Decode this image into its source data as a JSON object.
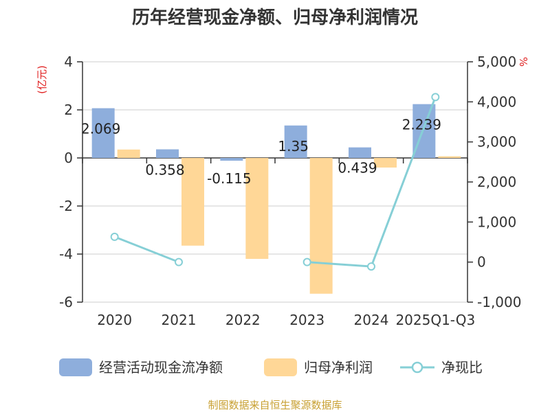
{
  "chart_data": {
    "type": "bar",
    "title": "历年经营现金净额、归母净利润情况",
    "categories": [
      "2020",
      "2021",
      "2022",
      "2023",
      "2024",
      "2025Q1-Q3"
    ],
    "series": [
      {
        "name": "经营活动现金流净额",
        "type": "bar",
        "axis": "left",
        "values": [
          2.069,
          0.358,
          -0.115,
          1.35,
          0.439,
          2.239
        ],
        "labels": [
          "2.069",
          "0.358",
          "-0.115",
          "1.35",
          "0.439",
          "2.239"
        ],
        "color": "#8eaedc"
      },
      {
        "name": "归母净利润",
        "type": "bar",
        "axis": "left",
        "values": [
          0.35,
          -3.65,
          -4.2,
          -5.65,
          -0.4,
          0.07
        ],
        "color": "#ffd797"
      },
      {
        "name": "净现比",
        "type": "line",
        "axis": "right",
        "values": [
          630,
          0,
          null,
          0,
          -110,
          4120
        ],
        "color": "#86cfd6"
      }
    ],
    "y_left": {
      "label": "(亿元)",
      "ticks": [
        "4",
        "2",
        "0",
        "-2",
        "-4",
        "-6"
      ],
      "range": [
        -6,
        4
      ]
    },
    "y_right": {
      "label": "%",
      "ticks": [
        "5,000",
        "4,000",
        "3,000",
        "2,000",
        "1,000",
        "0",
        "-1,000"
      ],
      "range": [
        -1000,
        5000
      ]
    },
    "grid": true,
    "legend_position": "bottom"
  },
  "colors": {
    "title": "#333333",
    "axis": "#333333",
    "grid": "#cccccc",
    "unit": "#e02020",
    "source": "#c8a032"
  },
  "source_text": "制图数据来自恒生聚源数据库"
}
